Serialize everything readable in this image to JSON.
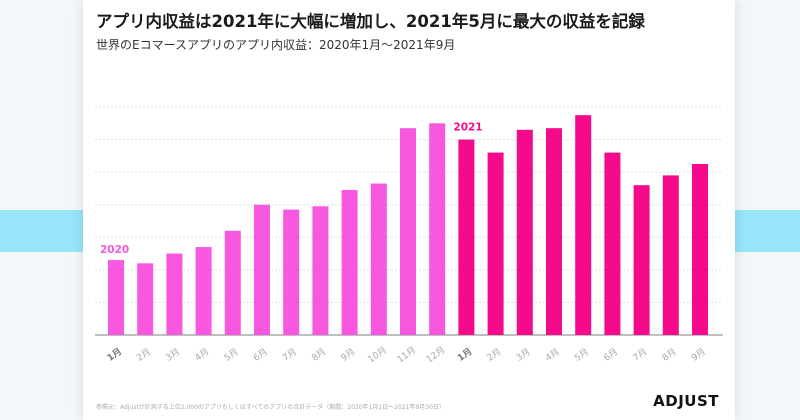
{
  "title": "アプリ内収益は2021年に大幅に増加し、2021年5月に最大の収益を記録",
  "subtitle": "世界のEコマースアプリのアプリ内収益：2020年1月～2021年9月",
  "source": "参照元：Adjustが計測する上位2,000のアプリもしくはすべてのアプリの合計データ（期間：2020年1月1日～2021年9月30日）",
  "logo": "ADJUST",
  "colors": {
    "y2020": "#f857e0",
    "y2021": "#f50a8c",
    "band": "#98e6fa"
  },
  "chart_data": {
    "type": "bar",
    "title": "アプリ内収益は2021年に大幅に増加し、2021年5月に最大の収益を記録",
    "subtitle": "世界のEコマースアプリのアプリ内収益：2020年1月～2021年9月",
    "categories": [
      "1月",
      "2月",
      "3月",
      "4月",
      "5月",
      "6月",
      "7月",
      "8月",
      "9月",
      "10月",
      "11月",
      "12月",
      "1月",
      "2月",
      "3月",
      "4月",
      "5月",
      "6月",
      "7月",
      "8月",
      "9月"
    ],
    "values": [
      2.3,
      2.2,
      2.5,
      2.7,
      3.2,
      4.0,
      3.85,
      3.95,
      4.45,
      4.65,
      6.35,
      6.5,
      6.0,
      5.6,
      6.3,
      6.35,
      6.75,
      5.6,
      4.6,
      4.9,
      5.25
    ],
    "groups": [
      {
        "label": "2020",
        "start": 0,
        "end": 11
      },
      {
        "label": "2021",
        "start": 12,
        "end": 20
      }
    ],
    "ylim": [
      0,
      7
    ],
    "y_axis_labels_shown": false,
    "grid": true
  }
}
